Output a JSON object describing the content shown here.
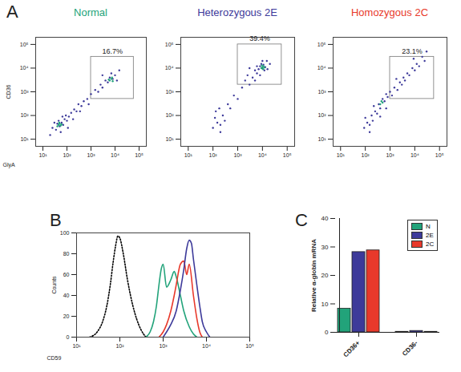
{
  "chart_data": [
    {
      "type": "scatter",
      "panel": "A",
      "title": "Normal",
      "color": "#22a37a",
      "xlabel": "GlyA",
      "ylabel": "CD36",
      "log": true,
      "xlim": [
        5,
        200000
      ],
      "ylim": [
        5,
        200000
      ],
      "xticks": [
        {
          "value": 10,
          "label": "10¹"
        },
        {
          "value": 100,
          "label": "10²"
        },
        {
          "value": 1000,
          "label": "10³"
        },
        {
          "value": 10000,
          "label": "10⁴"
        },
        {
          "value": 100000,
          "label": "10⁵"
        }
      ],
      "yticks": [
        {
          "value": 10,
          "label": "10¹"
        },
        {
          "value": 100,
          "label": "10²"
        },
        {
          "value": 1000,
          "label": "10³"
        },
        {
          "value": 10000,
          "label": "10⁴"
        },
        {
          "value": 100000,
          "label": "10⁵"
        }
      ],
      "series": [
        {
          "color": "#3d3a9a",
          "x": [
            25,
            35,
            40,
            50,
            60,
            45,
            70,
            80,
            100,
            30,
            55,
            90,
            120,
            150,
            200,
            250,
            300,
            400,
            500,
            700,
            1000,
            1500,
            2000,
            2500,
            3000,
            4000,
            5000,
            6000,
            8000,
            10000,
            12000,
            7000,
            15000,
            3000,
            20,
            65,
            110,
            180,
            350,
            800
          ],
          "y": [
            30,
            25,
            45,
            35,
            50,
            60,
            40,
            70,
            60,
            50,
            20,
            100,
            90,
            130,
            180,
            150,
            300,
            250,
            400,
            500,
            800,
            1200,
            1000,
            2000,
            1500,
            3000,
            2500,
            4000,
            3500,
            5000,
            3000,
            6000,
            8000,
            5000,
            15,
            90,
            30,
            70,
            150,
            300
          ]
        },
        {
          "color": "#22a37a",
          "x": [
            45,
            50,
            55,
            60,
            40,
            48,
            6000,
            7000,
            8000,
            5500,
            7500
          ],
          "y": [
            40,
            45,
            38,
            42,
            35,
            50,
            3000,
            3500,
            2800,
            3300,
            4000
          ]
        }
      ],
      "gate": {
        "x": [
          1000,
          60000
        ],
        "y": [
          500,
          30000
        ],
        "label": "16.7%"
      }
    },
    {
      "type": "scatter",
      "title": "Heterozygous 2E",
      "color": "#3d3a9a",
      "log": true,
      "xlim": [
        5,
        200000
      ],
      "ylim": [
        5,
        200000
      ],
      "xticks": [
        {
          "value": 10,
          "label": "10¹"
        },
        {
          "value": 100,
          "label": "10²"
        },
        {
          "value": 1000,
          "label": "10³"
        },
        {
          "value": 10000,
          "label": "10⁴"
        },
        {
          "value": 100000,
          "label": "10⁵"
        }
      ],
      "yticks": [
        {
          "value": 10,
          "label": "10¹"
        },
        {
          "value": 100,
          "label": "10²"
        },
        {
          "value": 1000,
          "label": "10³"
        },
        {
          "value": 10000,
          "label": "10⁴"
        },
        {
          "value": 100000,
          "label": "10⁵"
        }
      ],
      "series": [
        {
          "color": "#3d3a9a",
          "x": [
            100,
            150,
            200,
            120,
            250,
            180,
            300,
            130,
            400,
            500,
            700,
            1000,
            1500,
            2000,
            3000,
            2500,
            4000,
            5000,
            6000,
            8000,
            10000,
            12000,
            9000,
            15000,
            7000,
            11000,
            13000,
            20000,
            6000,
            10000,
            3000,
            8000,
            16000,
            5000,
            200
          ],
          "y": [
            30,
            50,
            40,
            80,
            100,
            200,
            60,
            150,
            300,
            200,
            700,
            500,
            1500,
            3000,
            2000,
            5000,
            4000,
            8000,
            6000,
            12000,
            10000,
            8000,
            15000,
            20000,
            9000,
            14000,
            11000,
            15000,
            12000,
            20000,
            10000,
            5000,
            9000,
            3000,
            20
          ]
        },
        {
          "color": "#22a37a",
          "x": [
            9000,
            10000,
            11000,
            9500,
            12000,
            10500
          ],
          "y": [
            10000,
            11000,
            12000,
            13000,
            10500,
            9000
          ]
        }
      ],
      "gate": {
        "x": [
          1000,
          60000
        ],
        "y": [
          2000,
          100000
        ],
        "label": "39.4%"
      }
    },
    {
      "type": "scatter",
      "title": "Homozygous 2C",
      "color": "#e8392b",
      "log": true,
      "xlim": [
        5,
        200000
      ],
      "ylim": [
        5,
        200000
      ],
      "xticks": [
        {
          "value": 10,
          "label": "10¹"
        },
        {
          "value": 100,
          "label": "10²"
        },
        {
          "value": 1000,
          "label": "10³"
        },
        {
          "value": 10000,
          "label": "10⁴"
        },
        {
          "value": 100000,
          "label": "10⁵"
        }
      ],
      "yticks": [
        {
          "value": 10,
          "label": "10¹"
        },
        {
          "value": 100,
          "label": "10²"
        },
        {
          "value": 1000,
          "label": "10³"
        },
        {
          "value": 10000,
          "label": "10⁴"
        },
        {
          "value": 100000,
          "label": "10⁵"
        }
      ],
      "series": [
        {
          "color": "#3d3a9a",
          "x": [
            90,
            120,
            150,
            100,
            180,
            200,
            250,
            300,
            220,
            350,
            400,
            500,
            600,
            700,
            800,
            1000,
            1200,
            1500,
            2000,
            2500,
            3000,
            3500,
            4000,
            5000,
            6000,
            8000,
            10000,
            12000,
            15000,
            20000,
            25000,
            30000,
            9000,
            150,
            400,
            700,
            1800
          ],
          "y": [
            30,
            50,
            40,
            80,
            100,
            60,
            150,
            120,
            250,
            300,
            200,
            500,
            400,
            800,
            600,
            1000,
            700,
            1500,
            1200,
            2500,
            2000,
            4000,
            3000,
            6000,
            5000,
            10000,
            8000,
            15000,
            12000,
            30000,
            20000,
            50000,
            25000,
            20,
            90,
            200,
            3500
          ]
        },
        {
          "color": "#22a37a",
          "x": [
            400,
            500,
            450
          ],
          "y": [
            300,
            350,
            400
          ]
        }
      ],
      "gate": {
        "x": [
          1000,
          60000
        ],
        "y": [
          500,
          30000
        ],
        "label": "23.1%"
      }
    },
    {
      "type": "line",
      "panel": "B",
      "xlabel": "CD59",
      "ylabel": "Counts",
      "log": "x",
      "xlim": [
        10,
        100000
      ],
      "xticks": [
        {
          "value": 10,
          "label": "10¹"
        },
        {
          "value": 100,
          "label": "10²"
        },
        {
          "value": 1000,
          "label": "10³"
        },
        {
          "value": 10000,
          "label": "10⁴"
        },
        {
          "value": 100000,
          "label": "10⁵"
        }
      ],
      "ylim": [
        0,
        100
      ],
      "yticks": [
        0,
        20,
        40,
        60,
        80,
        100
      ],
      "series": [
        {
          "color": "#000000",
          "line_style": "dotted",
          "x": [
            20,
            30,
            40,
            50,
            60,
            70,
            80,
            90,
            100,
            120,
            150,
            200,
            300,
            400
          ],
          "values": [
            0,
            5,
            15,
            30,
            50,
            72,
            88,
            97,
            95,
            80,
            55,
            30,
            8,
            0
          ]
        },
        {
          "color": "#22a37a",
          "line_style": "solid",
          "x": [
            400,
            500,
            600,
            700,
            800,
            900,
            1000,
            1200,
            1500,
            1800,
            2000,
            2500,
            3000,
            4000,
            5000,
            6000
          ],
          "values": [
            0,
            5,
            15,
            30,
            50,
            65,
            70,
            48,
            55,
            63,
            58,
            40,
            25,
            10,
            3,
            0
          ]
        },
        {
          "color": "#e8392b",
          "line_style": "solid",
          "x": [
            800,
            1000,
            1200,
            1500,
            1800,
            2000,
            2500,
            3000,
            3500,
            4000,
            5000,
            6000,
            7000,
            8000
          ],
          "values": [
            0,
            5,
            12,
            25,
            40,
            50,
            70,
            73,
            60,
            70,
            40,
            18,
            5,
            0
          ]
        },
        {
          "color": "#3d3a9a",
          "line_style": "solid",
          "x": [
            1000,
            1200,
            1500,
            2000,
            2500,
            3000,
            3500,
            4000,
            4500,
            5000,
            6000,
            7000,
            8000,
            10000,
            12000
          ],
          "values": [
            0,
            5,
            12,
            25,
            45,
            65,
            85,
            93,
            90,
            75,
            50,
            30,
            15,
            5,
            0
          ]
        }
      ]
    },
    {
      "type": "bar",
      "panel": "C",
      "ylabel": "Relative α-globin mRNA",
      "categories": [
        "CD36+",
        "CD36-"
      ],
      "ylim": [
        0,
        40
      ],
      "yticks": [
        0,
        10,
        20,
        30,
        40
      ],
      "legend": "top-right",
      "series": [
        {
          "name": "N",
          "color": "#22a37a",
          "values": [
            8.3,
            0.2
          ]
        },
        {
          "name": "2E",
          "color": "#3d3a9a",
          "values": [
            28.2,
            0.5
          ]
        },
        {
          "name": "2C",
          "color": "#e8392b",
          "values": [
            28.8,
            0.2
          ]
        }
      ]
    }
  ]
}
